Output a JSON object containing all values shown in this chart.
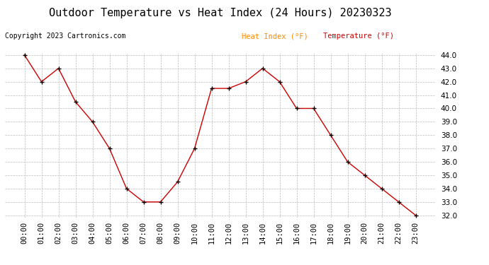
{
  "title": "Outdoor Temperature vs Heat Index (24 Hours) 20230323",
  "copyright_text": "Copyright 2023 Cartronics.com",
  "legend_heat_index": "Heat Index (°F)",
  "legend_temperature": "Temperature (°F)",
  "hours": [
    "00:00",
    "01:00",
    "02:00",
    "03:00",
    "04:00",
    "05:00",
    "06:00",
    "07:00",
    "08:00",
    "09:00",
    "10:00",
    "11:00",
    "12:00",
    "13:00",
    "14:00",
    "15:00",
    "16:00",
    "17:00",
    "18:00",
    "19:00",
    "20:00",
    "21:00",
    "22:00",
    "23:00"
  ],
  "temperature": [
    44.0,
    42.0,
    43.0,
    40.5,
    39.0,
    37.0,
    34.0,
    33.0,
    33.0,
    34.5,
    37.0,
    41.5,
    41.5,
    42.0,
    43.0,
    42.0,
    40.0,
    40.0,
    38.0,
    36.0,
    35.0,
    34.0,
    33.0,
    32.0
  ],
  "line_color": "#cc0000",
  "marker_color": "#000000",
  "heat_index_legend_color": "#ff8800",
  "temperature_legend_color": "#cc0000",
  "bg_color": "#ffffff",
  "grid_color": "#bbbbbb",
  "ylim": [
    32.0,
    44.0
  ],
  "ytick_step": 1.0,
  "title_fontsize": 11,
  "copyright_fontsize": 7,
  "legend_fontsize": 7.5,
  "tick_fontsize": 7.5
}
